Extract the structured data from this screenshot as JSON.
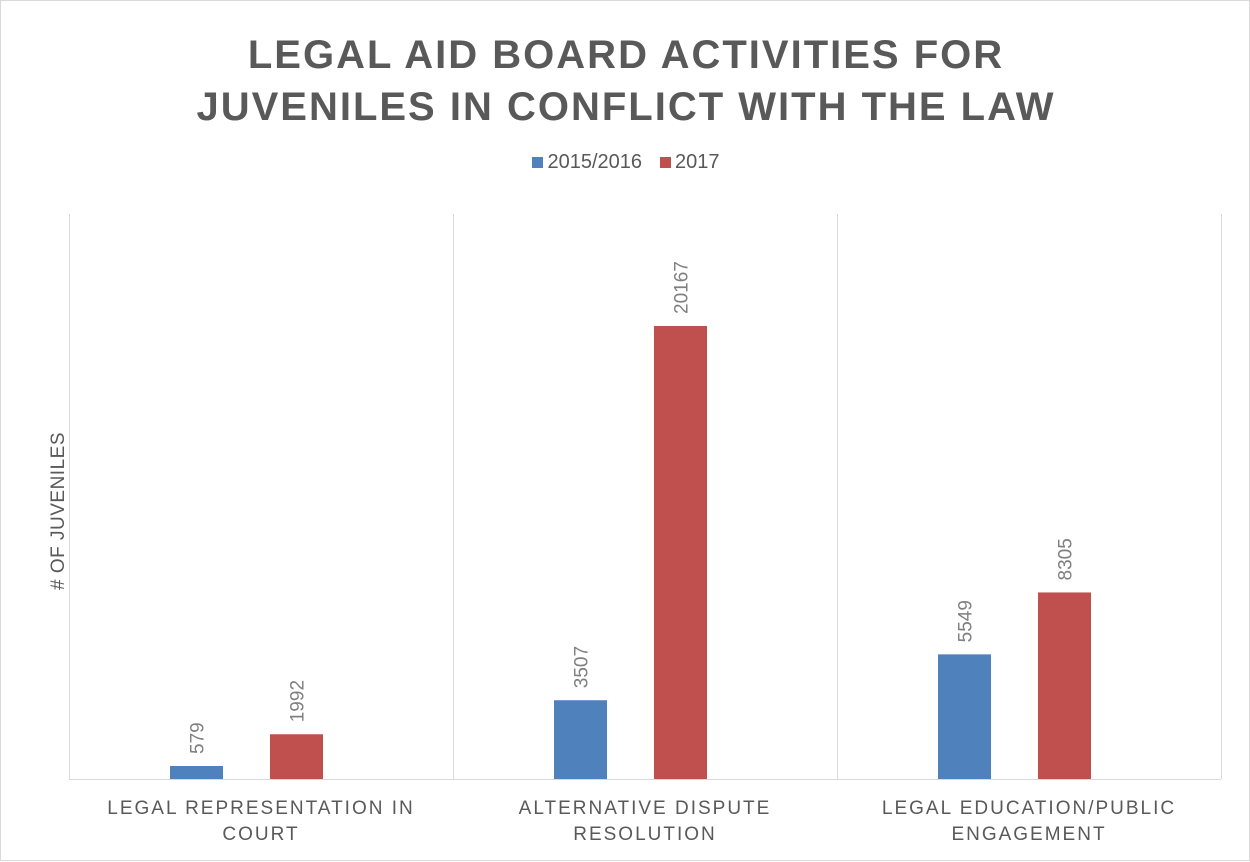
{
  "chart_data": {
    "type": "bar",
    "title": [
      "LEGAL AID BOARD ACTIVITIES FOR",
      "JUVENILES IN CONFLICT WITH THE LAW"
    ],
    "ylabel": "# OF JUVENILES",
    "xlabel": "",
    "categories": [
      "LEGAL REPRESENTATION IN\nCOURT",
      "ALTERNATIVE DISPUTE\nRESOLUTION",
      "LEGAL EDUCATION/PUBLIC\nENGAGEMENT"
    ],
    "series": [
      {
        "name": "2015/2016",
        "values": [
          579,
          3507,
          5549
        ],
        "color": "#4f81bd"
      },
      {
        "name": "2017",
        "values": [
          1992,
          20167,
          8305
        ],
        "color": "#c0504d"
      }
    ],
    "ylim": [
      0,
      24000
    ],
    "legend_position": "top",
    "data_labels": true,
    "grid": "vertical category separators"
  }
}
